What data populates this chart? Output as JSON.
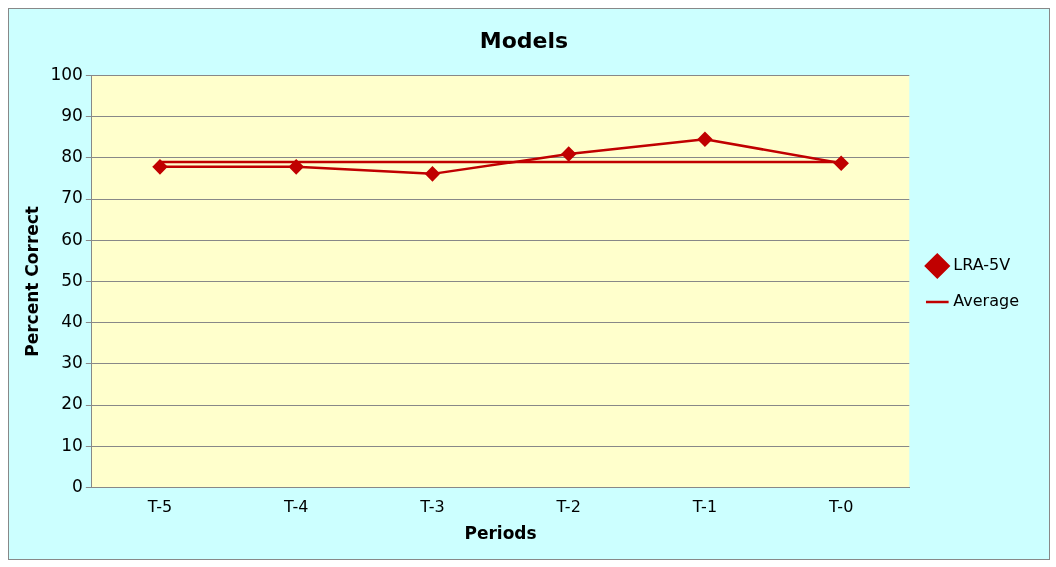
{
  "chart_data": {
    "type": "line",
    "title": "Models",
    "xlabel": "Periods",
    "ylabel": "Percent Correct",
    "categories": [
      "T-5",
      "T-4",
      "T-3",
      "T-2",
      "T-1",
      "T-0"
    ],
    "series": [
      {
        "name": "LRA-5V",
        "color": "#c00000",
        "values": [
          77.8,
          77.8,
          76.1,
          80.9,
          84.5,
          78.7
        ],
        "marker": "diamond"
      },
      {
        "name": "Average",
        "color": "#c00000",
        "values": [
          79,
          79,
          79,
          79,
          79,
          79
        ],
        "marker": "none"
      }
    ],
    "ylim": [
      0,
      100
    ],
    "yticks": [
      0,
      10,
      20,
      30,
      40,
      50,
      60,
      70,
      80,
      90,
      100
    ],
    "grid": "y",
    "legend": "right"
  }
}
